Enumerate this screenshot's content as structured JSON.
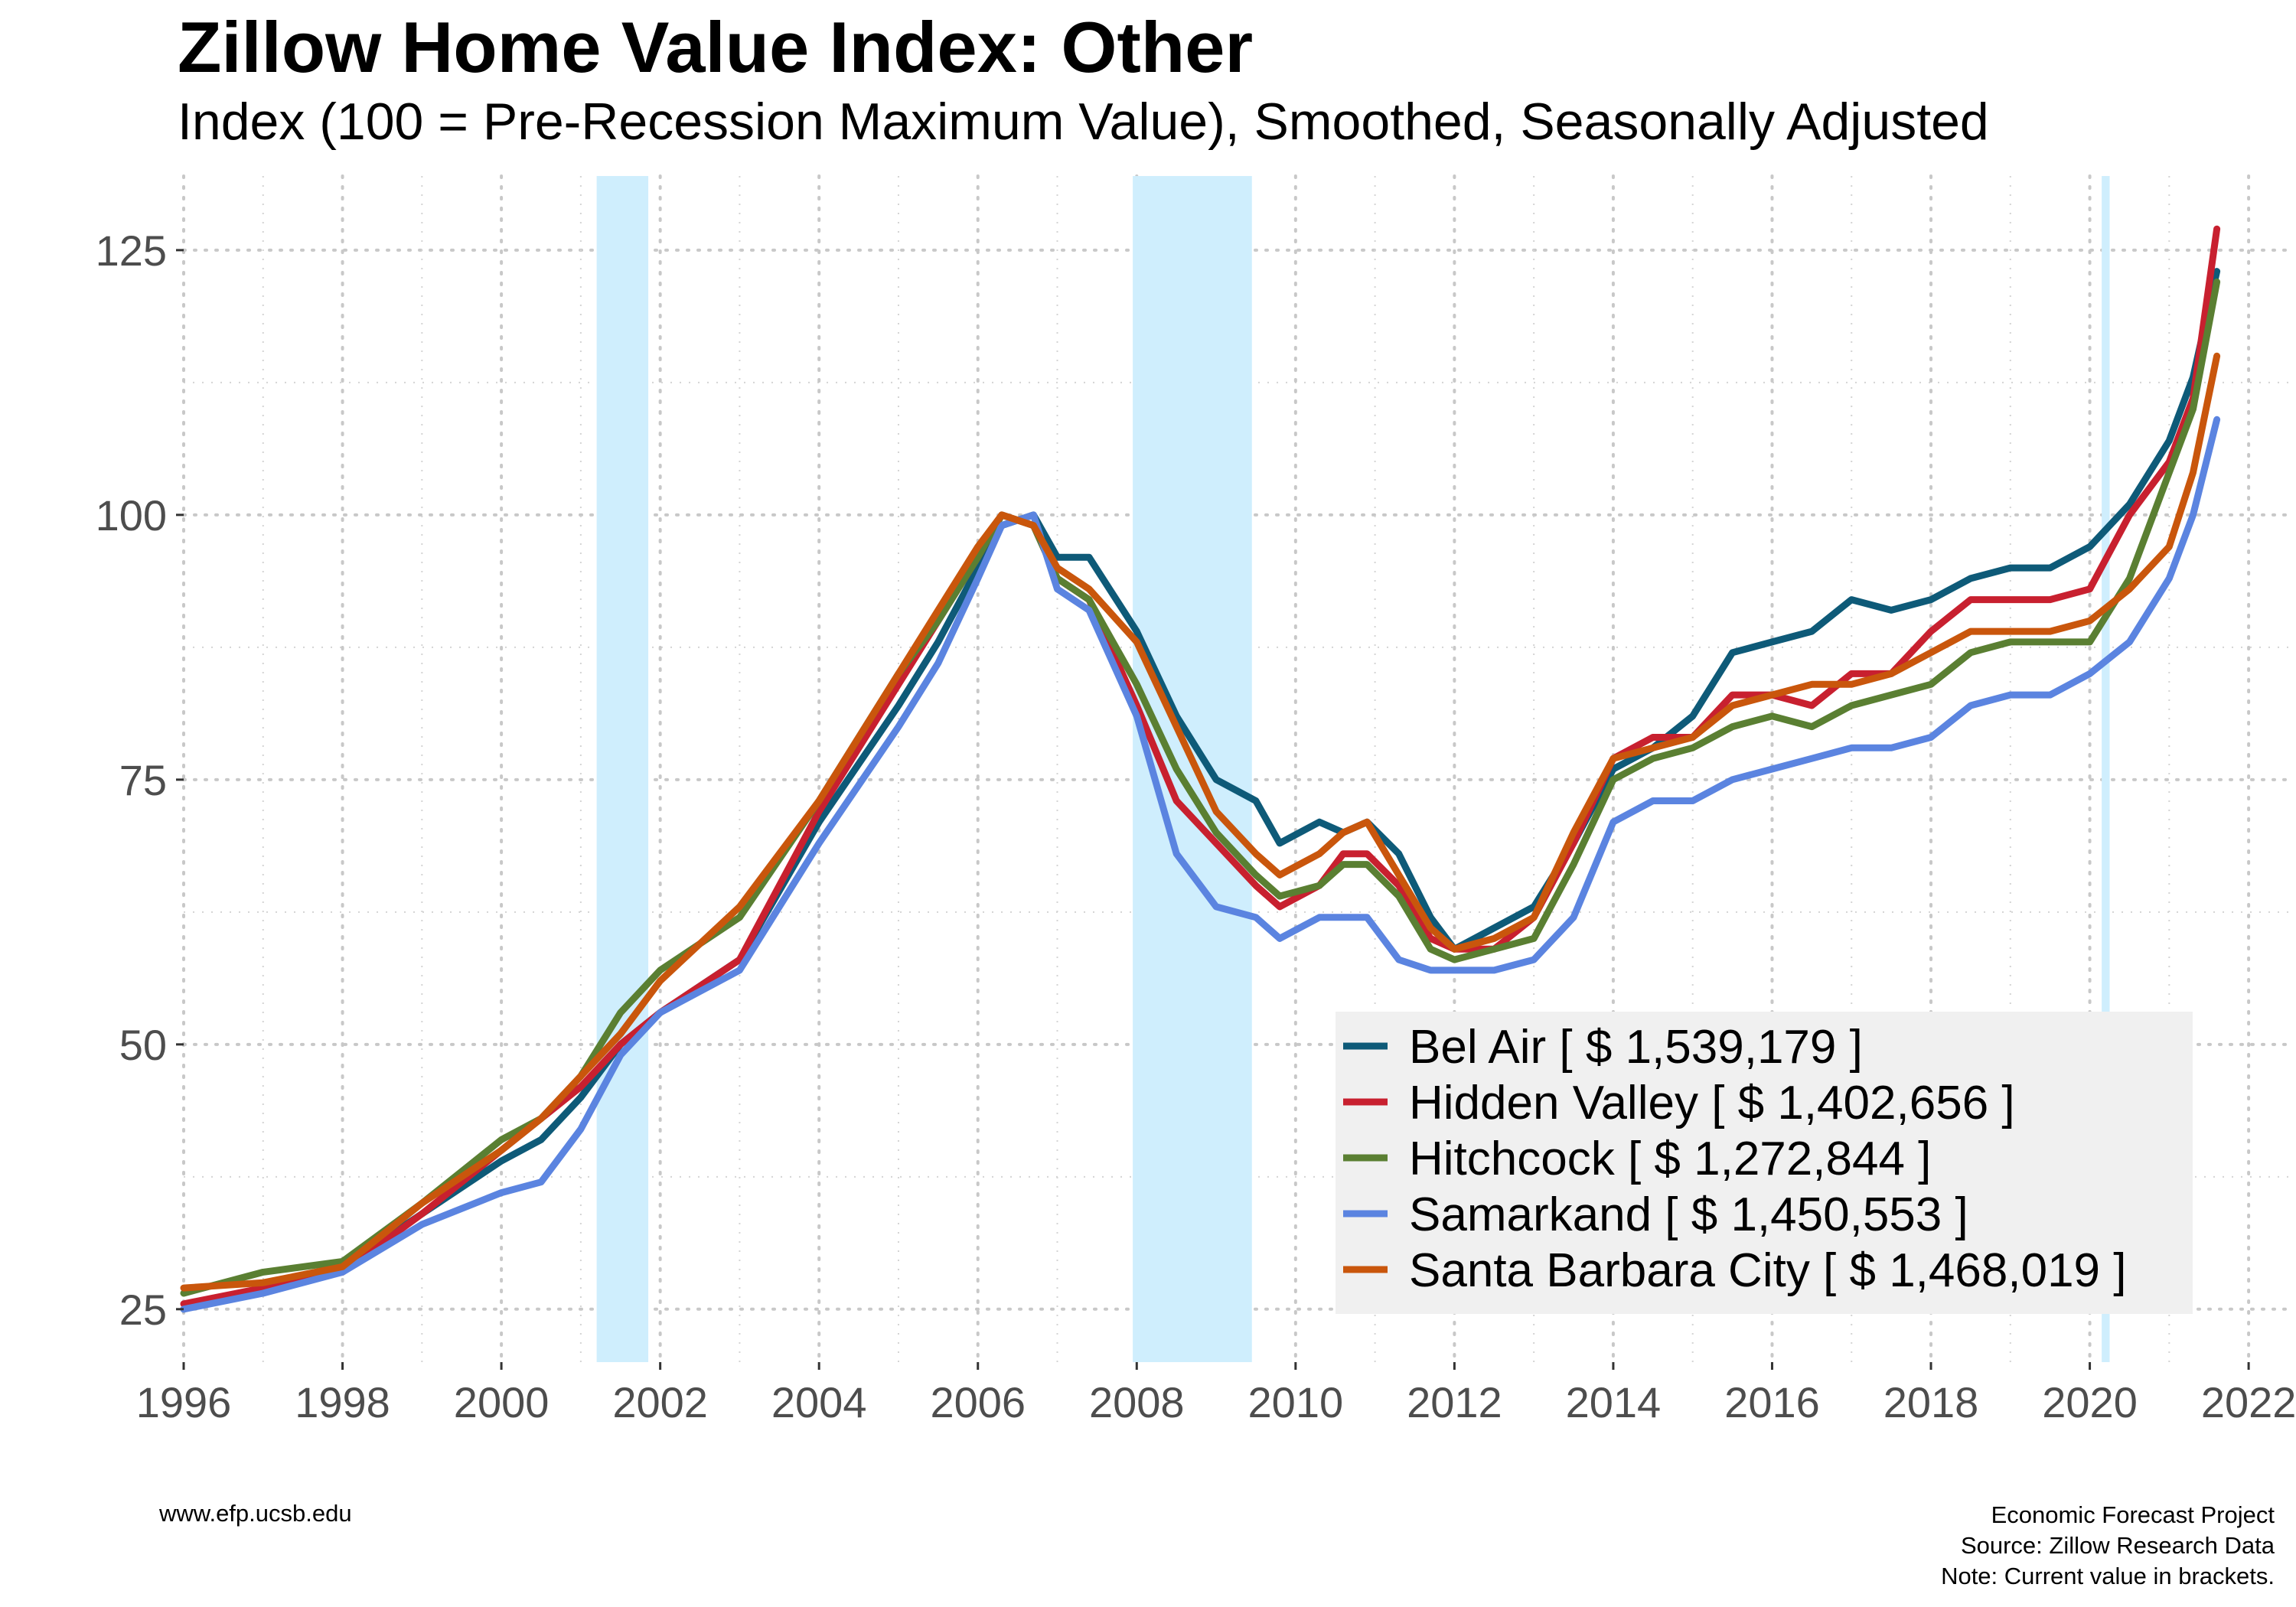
{
  "chart_data": {
    "type": "line",
    "title": "Zillow Home Value Index: Other",
    "subtitle": "Index (100 = Pre-Recession Maximum Value), Smoothed, Seasonally Adjusted",
    "xlabel": "",
    "ylabel": "",
    "xlim": [
      1996,
      2022.5
    ],
    "ylim": [
      20,
      132
    ],
    "x_ticks": [
      1996,
      1998,
      2000,
      2002,
      2004,
      2006,
      2008,
      2010,
      2012,
      2014,
      2016,
      2018,
      2020,
      2022
    ],
    "x_tick_labels": [
      "1996",
      "1998",
      "2000",
      "2002",
      "2004",
      "2006",
      "2008",
      "2010",
      "2012",
      "2014",
      "2016",
      "2018",
      "2020",
      "2022"
    ],
    "y_ticks": [
      25,
      50,
      75,
      100,
      125
    ],
    "y_tick_labels": [
      "25",
      "50",
      "75",
      "100",
      "125"
    ],
    "grid": true,
    "legend_position": "bottom-right",
    "recession_bands": [
      [
        2001.2,
        2001.85
      ],
      [
        2007.95,
        2009.45
      ],
      [
        2020.15,
        2020.25
      ]
    ],
    "series": [
      {
        "name": "Bel Air [ $ 1,539,179 ]",
        "color": "#0e5a78",
        "x": [
          1996,
          1997,
          1998,
          1999,
          2000,
          2000.5,
          2001,
          2001.5,
          2002,
          2003,
          2004,
          2005,
          2005.5,
          2006,
          2006.3,
          2006.7,
          2007,
          2007.4,
          2008,
          2008.5,
          2009,
          2009.5,
          2009.8,
          2010.3,
          2010.6,
          2010.9,
          2011.3,
          2011.7,
          2012,
          2012.5,
          2013,
          2013.5,
          2014,
          2014.5,
          2015,
          2015.5,
          2016,
          2016.5,
          2017,
          2017.5,
          2018,
          2018.5,
          2019,
          2019.5,
          2020,
          2020.5,
          2021,
          2021.3,
          2021.6
        ],
        "values": [
          25,
          27,
          29,
          34,
          39,
          41,
          45,
          50,
          53,
          58,
          71,
          82,
          88,
          95,
          99,
          100,
          96,
          96,
          89,
          81,
          75,
          73,
          69,
          71,
          70,
          71,
          68,
          62,
          59,
          61,
          63,
          69,
          76,
          78,
          81,
          87,
          88,
          89,
          92,
          91,
          92,
          94,
          95,
          95,
          97,
          101,
          107,
          113,
          123
        ]
      },
      {
        "name": "Hidden Valley [ $ 1,402,656 ]",
        "color": "#c8202f",
        "x": [
          1996,
          1997,
          1998,
          1999,
          2000,
          2000.5,
          2001,
          2001.5,
          2002,
          2003,
          2004,
          2005,
          2005.5,
          2006,
          2006.3,
          2006.7,
          2007,
          2007.4,
          2008,
          2008.5,
          2009,
          2009.5,
          2009.8,
          2010.3,
          2010.6,
          2010.9,
          2011.3,
          2011.7,
          2012,
          2012.5,
          2013,
          2013.5,
          2014,
          2014.5,
          2015,
          2015.5,
          2016,
          2016.5,
          2017,
          2017.5,
          2018,
          2018.5,
          2019,
          2019.5,
          2020,
          2020.5,
          2021,
          2021.3,
          2021.6
        ],
        "values": [
          25.5,
          27,
          28.5,
          34,
          40,
          43,
          46,
          50,
          53,
          58,
          72,
          84,
          90,
          96,
          100,
          99,
          94,
          92,
          82,
          73,
          69,
          65,
          63,
          65,
          68,
          68,
          65,
          60,
          59,
          59,
          62,
          69,
          77,
          79,
          79,
          83,
          83,
          82,
          85,
          85,
          89,
          92,
          92,
          92,
          93,
          100,
          105,
          111,
          127
        ]
      },
      {
        "name": "Hitchcock [ $ 1,272,844 ]",
        "color": "#5a7f32",
        "x": [
          1996,
          1997,
          1998,
          1999,
          2000,
          2000.5,
          2001,
          2001.5,
          2002,
          2003,
          2004,
          2005,
          2005.5,
          2006,
          2006.3,
          2006.7,
          2007,
          2007.4,
          2008,
          2008.5,
          2009,
          2009.5,
          2009.8,
          2010.3,
          2010.6,
          2010.9,
          2011.3,
          2011.7,
          2012,
          2012.5,
          2013,
          2013.5,
          2014,
          2014.5,
          2015,
          2015.5,
          2016,
          2016.5,
          2017,
          2017.5,
          2018,
          2018.5,
          2019,
          2019.5,
          2020,
          2020.5,
          2021,
          2021.3,
          2021.6
        ],
        "values": [
          26.5,
          28.5,
          29.5,
          35,
          41,
          43,
          47,
          53,
          57,
          62,
          73,
          85,
          90,
          96,
          100,
          99,
          94,
          92,
          84,
          76,
          70,
          66,
          64,
          65,
          67,
          67,
          64,
          59,
          58,
          59,
          60,
          67,
          75,
          77,
          78,
          80,
          81,
          80,
          82,
          83,
          84,
          87,
          88,
          88,
          88,
          94,
          104,
          110,
          122
        ]
      },
      {
        "name": "Samarkand [ $ 1,450,553 ]",
        "color": "#5b84e0",
        "x": [
          1996,
          1997,
          1998,
          1999,
          2000,
          2000.5,
          2001,
          2001.5,
          2002,
          2003,
          2004,
          2005,
          2005.5,
          2006,
          2006.3,
          2006.7,
          2007,
          2007.4,
          2008,
          2008.5,
          2009,
          2009.5,
          2009.8,
          2010.3,
          2010.6,
          2010.9,
          2011.3,
          2011.7,
          2012,
          2012.5,
          2013,
          2013.5,
          2014,
          2014.5,
          2015,
          2015.5,
          2016,
          2016.5,
          2017,
          2017.5,
          2018,
          2018.5,
          2019,
          2019.5,
          2020,
          2020.5,
          2021,
          2021.3,
          2021.6
        ],
        "values": [
          25,
          26.5,
          28.5,
          33,
          36,
          37,
          42,
          49,
          53,
          57,
          69,
          80,
          86,
          94,
          99,
          100,
          93,
          91,
          81,
          68,
          63,
          62,
          60,
          62,
          62,
          62,
          58,
          57,
          57,
          57,
          58,
          62,
          71,
          73,
          73,
          75,
          76,
          77,
          78,
          78,
          79,
          82,
          83,
          83,
          85,
          88,
          94,
          100,
          109
        ]
      },
      {
        "name": "Santa Barbara City [ $ 1,468,019 ]",
        "color": "#c9560c",
        "x": [
          1996,
          1997,
          1998,
          1999,
          2000,
          2000.5,
          2001,
          2001.5,
          2002,
          2003,
          2004,
          2005,
          2005.5,
          2006,
          2006.3,
          2006.7,
          2007,
          2007.4,
          2008,
          2008.5,
          2009,
          2009.5,
          2009.8,
          2010.3,
          2010.6,
          2010.9,
          2011.3,
          2011.7,
          2012,
          2012.5,
          2013,
          2013.5,
          2014,
          2014.5,
          2015,
          2015.5,
          2016,
          2016.5,
          2017,
          2017.5,
          2018,
          2018.5,
          2019,
          2019.5,
          2020,
          2020.5,
          2021,
          2021.3,
          2021.6
        ],
        "values": [
          27,
          27.5,
          29,
          35,
          40,
          43,
          47,
          51,
          56,
          63,
          73,
          85,
          91,
          97,
          100,
          99,
          95,
          93,
          88,
          80,
          72,
          68,
          66,
          68,
          70,
          71,
          66,
          61,
          59,
          60,
          62,
          70,
          77,
          78,
          79,
          82,
          83,
          84,
          84,
          85,
          87,
          89,
          89,
          89,
          90,
          93,
          97,
          104,
          115
        ]
      }
    ]
  },
  "footer": {
    "left": "www.efp.ucsb.edu",
    "right_lines": [
      "Economic Forecast Project",
      "Source: Zillow Research Data",
      "Note: Current value in brackets."
    ]
  }
}
